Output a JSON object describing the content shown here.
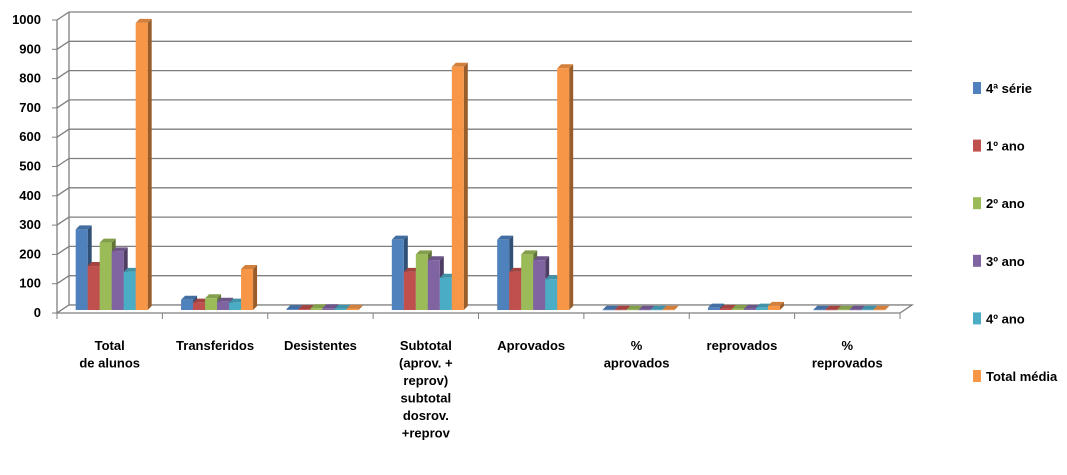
{
  "chart_data": {
    "type": "bar",
    "title": "",
    "xlabel": "",
    "ylabel": "",
    "ylim": [
      0,
      1000
    ],
    "yticks": [
      0,
      100,
      200,
      300,
      400,
      500,
      600,
      700,
      800,
      900,
      1000
    ],
    "grid": true,
    "three_d": true,
    "legend_position": "right",
    "categories": [
      [
        "Total",
        "de alunos"
      ],
      [
        "Transferidos"
      ],
      [
        "Desistentes"
      ],
      [
        "Subtotal",
        "(aprov. +",
        "reprov)",
        "subtotal",
        "dosrov.",
        "+reprov"
      ],
      [
        "Aprovados"
      ],
      [
        "%",
        "aprovados"
      ],
      [
        "reprovados"
      ],
      [
        "%",
        "reprovados"
      ]
    ],
    "series": [
      {
        "name": "4ª série",
        "color": "#4F81BD",
        "values": [
          275,
          35,
          3,
          240,
          240,
          1,
          8,
          1
        ]
      },
      {
        "name": "1º ano",
        "color": "#C0504D",
        "values": [
          150,
          25,
          3,
          130,
          130,
          1,
          4,
          1
        ]
      },
      {
        "name": "2º ano",
        "color": "#9BBB59",
        "values": [
          230,
          40,
          6,
          190,
          190,
          1,
          4,
          1
        ]
      },
      {
        "name": "3º ano",
        "color": "#8064A2",
        "values": [
          200,
          28,
          6,
          170,
          170,
          1,
          4,
          1
        ]
      },
      {
        "name": "4º ano",
        "color": "#4BACC6",
        "values": [
          130,
          25,
          4,
          110,
          105,
          1,
          8,
          1
        ]
      },
      {
        "name": "Total média",
        "color": "#F79646",
        "values": [
          980,
          140,
          4,
          830,
          825,
          1,
          14,
          1
        ]
      }
    ]
  }
}
